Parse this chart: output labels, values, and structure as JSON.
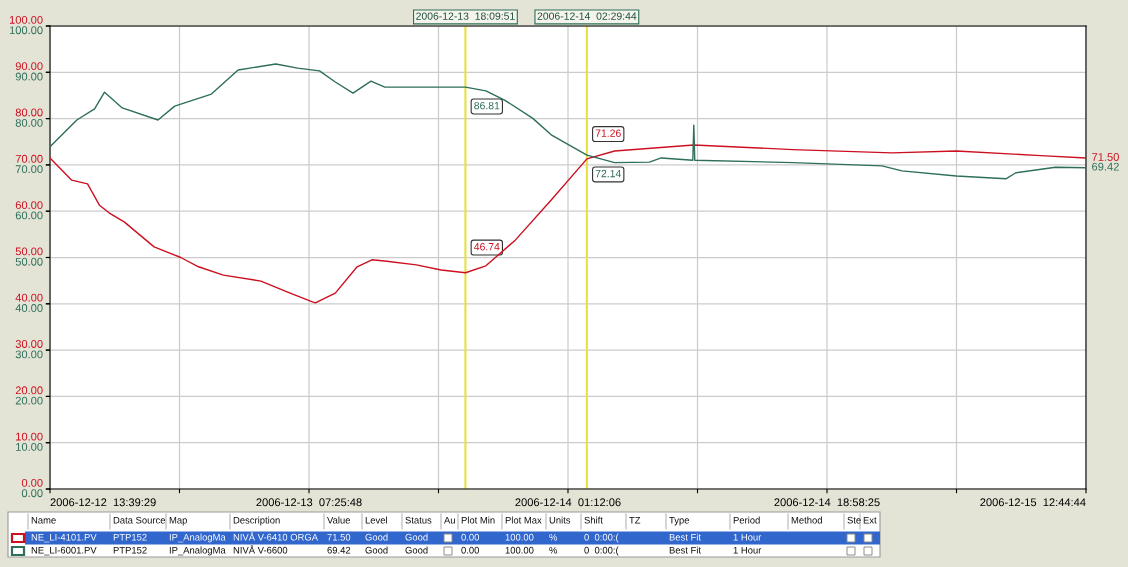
{
  "chart_data": {
    "type": "line",
    "xlim": [
      "2006-12-12T13:39:29",
      "2006-12-15T12:44:44"
    ],
    "xticks": [
      {
        "value": "2006-12-12T13:39:29",
        "label": "2006-12-12  13:39:29"
      },
      {
        "value": "2006-12-12T22:32:39",
        "label": null
      },
      {
        "value": "2006-12-13T07:25:48",
        "label": "2006-12-13  07:25:48"
      },
      {
        "value": "2006-12-13T16:18:57",
        "label": null
      },
      {
        "value": "2006-12-14T01:12:06",
        "label": "2006-12-14  01:12:06"
      },
      {
        "value": "2006-12-14T10:05:16",
        "label": null
      },
      {
        "value": "2006-12-14T18:58:25",
        "label": "2006-12-14  18:58:25"
      },
      {
        "value": "2006-12-15T03:51:35",
        "label": null
      },
      {
        "value": "2006-12-15T12:44:44",
        "label": "2006-12-15  12:44:44"
      }
    ],
    "ylim": [
      0,
      100
    ],
    "yticks": [
      {
        "value": 0,
        "label": "0.00"
      },
      {
        "value": 10,
        "label": "10.00"
      },
      {
        "value": 20,
        "label": "20.00"
      },
      {
        "value": 30,
        "label": "30.00"
      },
      {
        "value": 40,
        "label": "40.00"
      },
      {
        "value": 50,
        "label": "50.00"
      },
      {
        "value": 60,
        "label": "60.00"
      },
      {
        "value": 70,
        "label": "70.00"
      },
      {
        "value": 80,
        "label": "80.00"
      },
      {
        "value": 90,
        "label": "90.00"
      },
      {
        "value": 100,
        "label": "100.00"
      }
    ],
    "y2lim": [
      0,
      100
    ],
    "y2ticks": [
      {
        "value": 0,
        "label": "0.00"
      },
      {
        "value": 10,
        "label": "10.00"
      },
      {
        "value": 20,
        "label": "20.00"
      },
      {
        "value": 30,
        "label": "30.00"
      },
      {
        "value": 40,
        "label": "40.00"
      },
      {
        "value": 50,
        "label": "50.00"
      },
      {
        "value": 60,
        "label": "60.00"
      },
      {
        "value": 70,
        "label": "70.00"
      },
      {
        "value": 80,
        "label": "80.00"
      },
      {
        "value": 90,
        "label": "90.00"
      },
      {
        "value": 100,
        "label": "100.00"
      }
    ],
    "grid": true,
    "legend": "bottom",
    "marker": "none",
    "line_style": "solid",
    "series": [
      {
        "name": "NE_LI-4101.PV",
        "color": "#cc1020",
        "x": [
          "2006-12-12T13:39:29",
          "2006-12-12T15:09",
          "2006-12-12T16:14",
          "2006-12-12T17:03",
          "2006-12-12T17:44",
          "2006-12-12T18:45",
          "2006-12-12T20:48",
          "2006-12-12T22:38",
          "2006-12-12T23:51",
          "2006-12-13T01:33",
          "2006-12-13T04:08",
          "2006-12-13T05:58",
          "2006-12-13T07:40",
          "2006-12-13T07:52",
          "2006-12-13T09:14",
          "2006-12-13T10:44",
          "2006-12-13T11:45",
          "2006-12-13T12:46",
          "2006-12-13T14:48",
          "2006-12-13T16:30",
          "2006-12-13T18:10",
          "2006-12-13T19:34",
          "2006-12-13T21:36",
          "2006-12-14T00:03",
          "2006-12-14T02:30",
          "2006-12-14T04:24",
          "2006-12-14T09:50",
          "2006-12-14T16:38",
          "2006-12-14T23:26",
          "2006-12-15T03:51",
          "2006-12-15T09:38",
          "2006-12-15T12:44"
        ],
        "values": [
          71.5,
          66.7,
          65.9,
          61.3,
          59.6,
          57.7,
          52.3,
          50.0,
          48.0,
          46.2,
          44.9,
          42.5,
          40.4,
          40.2,
          42.3,
          48.0,
          49.5,
          49.2,
          48.4,
          47.3,
          46.7,
          48.2,
          53.8,
          62.4,
          71.3,
          73.0,
          74.3,
          73.3,
          72.6,
          73.0,
          72.0,
          71.5
        ]
      },
      {
        "name": "NE_LI-6001.PV",
        "color": "#2e6e5a",
        "axis": "y2",
        "x": [
          "2006-12-12T13:39:29",
          "2006-12-12T15:30",
          "2006-12-12T16:43",
          "2006-12-12T17:24",
          "2006-12-12T18:37",
          "2006-12-12T21:04",
          "2006-12-12T22:13",
          "2006-12-13T00:44",
          "2006-12-13T02:34",
          "2006-12-13T05:09",
          "2006-12-13T06:39",
          "2006-12-13T08:09",
          "2006-12-13T09:14",
          "2006-12-13T10:27",
          "2006-12-13T11:41",
          "2006-12-13T12:38",
          "2006-12-13T14:08",
          "2006-12-13T18:10",
          "2006-12-13T19:34",
          "2006-12-13T20:51",
          "2006-12-13T22:46",
          "2006-12-14T00:03",
          "2006-12-14T02:30",
          "2006-12-14T04:24",
          "2006-12-14T06:47",
          "2006-12-14T07:36",
          "2006-12-14T09:46",
          "2006-12-14T09:50",
          "2006-12-14T09:54",
          "2006-12-14T16:38",
          "2006-12-14T22:45",
          "2006-12-15T00:07",
          "2006-12-15T03:51",
          "2006-12-15T07:15",
          "2006-12-15T07:56",
          "2006-12-15T10:39",
          "2006-12-15T12:44"
        ],
        "values": [
          73.9,
          79.7,
          82.1,
          85.7,
          82.3,
          79.7,
          82.7,
          85.3,
          90.5,
          91.8,
          90.9,
          90.3,
          87.9,
          85.5,
          88.1,
          86.8,
          86.8,
          86.8,
          86.0,
          84.0,
          80.1,
          76.5,
          72.1,
          70.5,
          70.6,
          71.5,
          71.0,
          78.6,
          71.0,
          70.5,
          69.8,
          68.7,
          67.6,
          67.0,
          68.3,
          69.5,
          69.4
        ]
      }
    ],
    "ref_lines": [
      {
        "axis": "x",
        "value": "2006-12-13T18:09:51",
        "label": "2006-12-13  18:09:51",
        "color": "#e8e040"
      },
      {
        "axis": "x",
        "value": "2006-12-14T02:29:44",
        "label": "2006-12-14  02:29:44",
        "color": "#e8e040"
      }
    ],
    "annotations": [
      {
        "text": "46.74",
        "x": "2006-12-13T18:09:51",
        "y": 46.74
      },
      {
        "text": "71.26",
        "x": "2006-12-14T02:29:44",
        "y": 71.26
      },
      {
        "text": "86.81",
        "x": "2006-12-13T18:09:51",
        "y": 86.81
      },
      {
        "text": "72.14",
        "x": "2006-12-14T02:29:44",
        "y": 72.14
      },
      {
        "text": "71.50",
        "x": "2006-12-15T12:44:44",
        "y": 71.5
      },
      {
        "text": "69.42",
        "x": "2006-12-15T12:44:44",
        "y": 69.42
      },
      "Name",
      "Data Source",
      "Map",
      "Description",
      "Value",
      "Level",
      "Status",
      "Au",
      "Plot Min",
      "Plot Max",
      "Units",
      "Shift",
      "TZ",
      "Type",
      "Period",
      "Method",
      "Ste",
      "Ext",
      "PTP152",
      "IP_AnalogMa",
      "NIVÅ V-6410 ORGA",
      "71.50",
      "Good",
      "Good",
      "0.00",
      "100.00",
      "%",
      "0  0:00:(",
      "Best Fit",
      "1 Hour",
      "PTP152",
      "IP_AnalogMa",
      "NIVÅ V-6600",
      "69.42",
      "Good",
      "Good",
      "0.00",
      "100.00",
      "%",
      "0  0:00:(",
      "Best Fit",
      "1 Hour"
    ]
  }
}
